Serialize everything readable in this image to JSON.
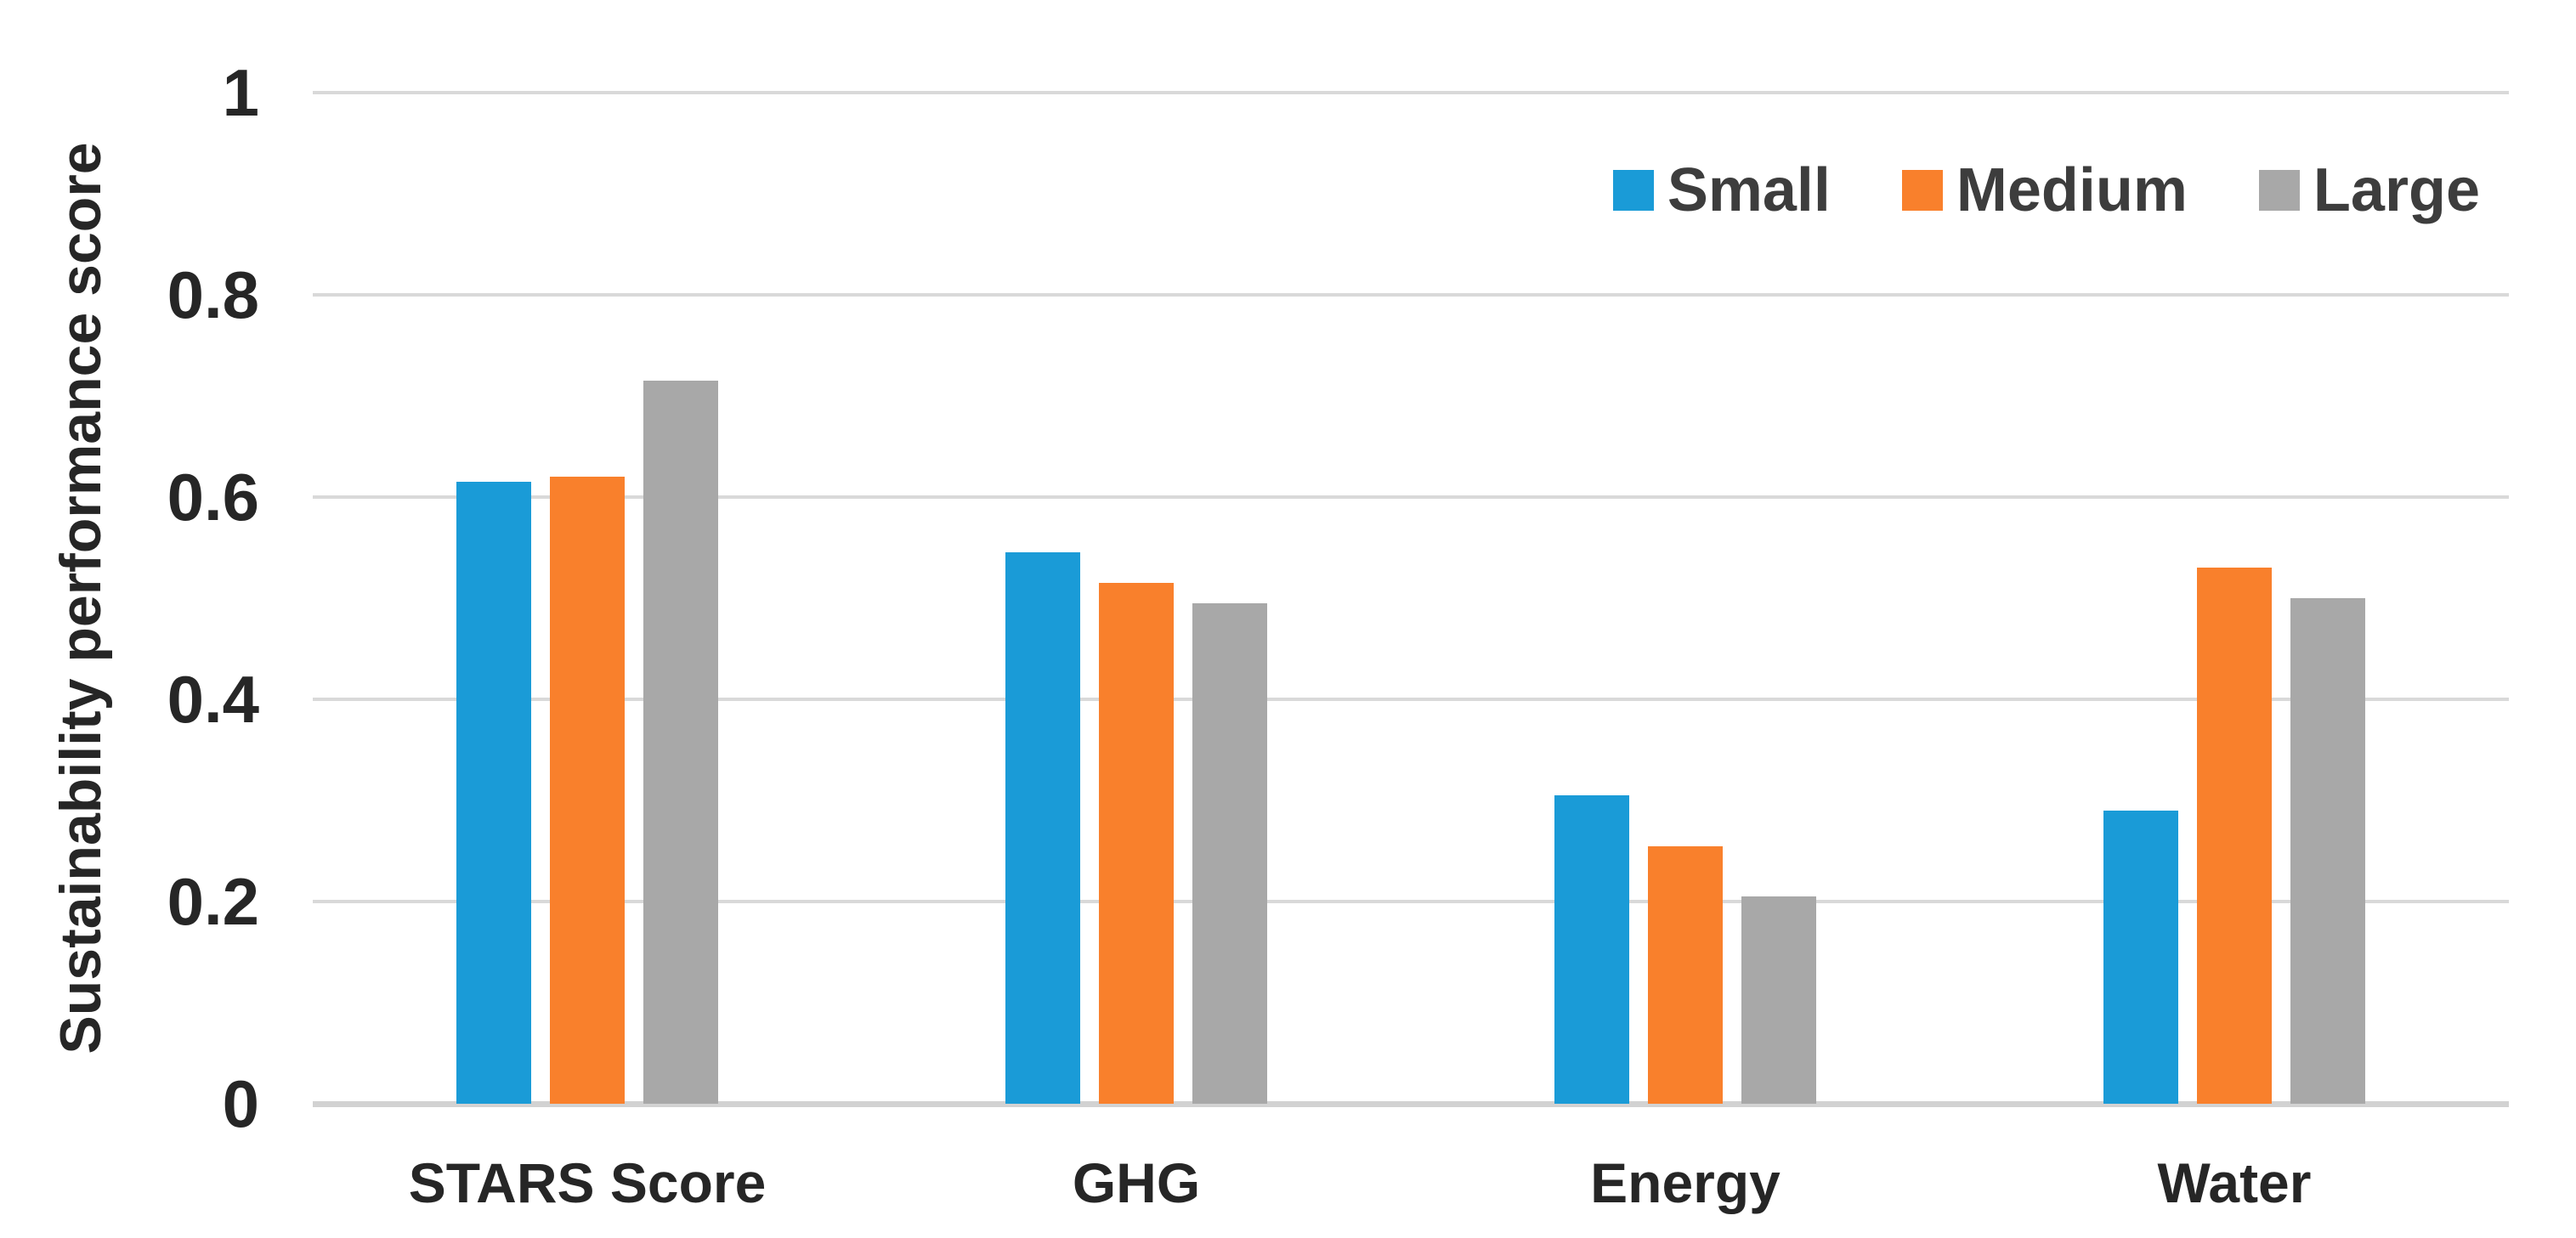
{
  "chart_data": {
    "type": "bar",
    "title": "",
    "categories": [
      "STARS Score",
      "GHG",
      "Energy",
      "Water"
    ],
    "series": [
      {
        "name": "Small",
        "color": "#1A9BD7",
        "values": [
          0.615,
          0.545,
          0.305,
          0.29
        ]
      },
      {
        "name": "Medium",
        "color": "#F9802C",
        "values": [
          0.62,
          0.515,
          0.255,
          0.53
        ]
      },
      {
        "name": "Large",
        "color": "#A8A8A8",
        "values": [
          0.715,
          0.495,
          0.205,
          0.5
        ]
      }
    ],
    "xlabel": "",
    "ylabel": "Sustainability performance score",
    "ylim": [
      0,
      1
    ],
    "yticks": [
      0,
      0.2,
      0.4,
      0.6,
      0.8,
      1
    ],
    "ytick_labels": [
      "0",
      "0.2",
      "0.4",
      "0.6",
      "0.8",
      "1"
    ],
    "grid": true,
    "legend_position": "top-right",
    "colors": {
      "gridline": "#D9D9D9",
      "axis_baseline": "#D2D2D2",
      "tick_text": "#262626",
      "legend_text": "#3D3D3D",
      "background": "#FFFFFF"
    }
  }
}
